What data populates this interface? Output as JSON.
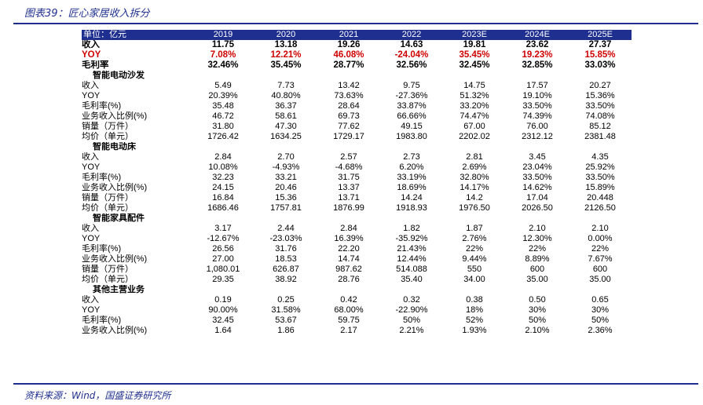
{
  "title": "图表39：匠心家居收入拆分",
  "source": "资料来源：Wind，国盛证券研究所",
  "header": [
    "单位：亿元",
    "2019",
    "2020",
    "2021",
    "2022",
    "2023E",
    "2024E",
    "2025E"
  ],
  "top_rows": [
    {
      "label": "收入",
      "values": [
        "11.75",
        "13.18",
        "19.26",
        "14.63",
        "19.81",
        "23.62",
        "27.37"
      ],
      "style": "top"
    },
    {
      "label": "YOY",
      "values": [
        "7.08%",
        "12.21%",
        "46.08%",
        "-24.04%",
        "35.45%",
        "19.23%",
        "15.85%"
      ],
      "style": "top red"
    },
    {
      "label": "毛利率",
      "values": [
        "32.46%",
        "35.45%",
        "28.77%",
        "32.56%",
        "32.45%",
        "32.85%",
        "33.03%"
      ],
      "style": "top"
    }
  ],
  "sections": [
    {
      "name": "智能电动沙发",
      "rows": [
        {
          "label": "收入",
          "indent": "l2",
          "values": [
            "5.49",
            "7.73",
            "13.42",
            "9.75",
            "14.75",
            "17.57",
            "20.27"
          ]
        },
        {
          "label": "YOY",
          "indent": "l2",
          "values": [
            "20.39%",
            "40.80%",
            "73.63%",
            "-27.36%",
            "51.32%",
            "19.10%",
            "15.36%"
          ]
        },
        {
          "label": "毛利率(%)",
          "indent": "l2",
          "values": [
            "35.48",
            "36.37",
            "28.64",
            "33.87%",
            "33.20%",
            "33.50%",
            "33.50%"
          ]
        },
        {
          "label": "业务收入比例(%)",
          "indent": "l2",
          "values": [
            "46.72",
            "58.61",
            "69.73",
            "66.66%",
            "74.47%",
            "74.39%",
            "74.08%"
          ]
        },
        {
          "label": "销量（万件）",
          "indent": "l3",
          "values": [
            "31.80",
            "47.30",
            "77.62",
            "49.15",
            "67.00",
            "76.00",
            "85.12"
          ]
        },
        {
          "label": "均价（单元）",
          "indent": "l3",
          "values": [
            "1726.42",
            "1634.25",
            "1729.17",
            "1983.80",
            "2202.02",
            "2312.12",
            "2381.48"
          ]
        }
      ]
    },
    {
      "name": "智能电动床",
      "rows": [
        {
          "label": "收入",
          "indent": "l2",
          "values": [
            "2.84",
            "2.70",
            "2.57",
            "2.73",
            "2.81",
            "3.45",
            "4.35"
          ]
        },
        {
          "label": "YOY",
          "indent": "l2",
          "values": [
            "10.08%",
            "-4.93%",
            "-4.68%",
            "6.20%",
            "2.69%",
            "23.04%",
            "25.92%"
          ]
        },
        {
          "label": "毛利率(%)",
          "indent": "l2",
          "values": [
            "32.23",
            "33.21",
            "31.75",
            "33.19%",
            "32.80%",
            "33.50%",
            "33.50%"
          ]
        },
        {
          "label": "业务收入比例(%)",
          "indent": "l2",
          "values": [
            "24.15",
            "20.46",
            "13.37",
            "18.69%",
            "14.17%",
            "14.62%",
            "15.89%"
          ]
        },
        {
          "label": "销量（万件）",
          "indent": "l3",
          "values": [
            "16.84",
            "15.36",
            "13.71",
            "14.24",
            "14.2",
            "17.04",
            "20.448"
          ]
        },
        {
          "label": "均价（单元）",
          "indent": "l3",
          "values": [
            "1686.46",
            "1757.81",
            "1876.99",
            "1918.93",
            "1976.50",
            "2026.50",
            "2126.50"
          ]
        }
      ]
    },
    {
      "name": "智能家具配件",
      "rows": [
        {
          "label": "收入",
          "indent": "l2",
          "values": [
            "3.17",
            "2.44",
            "2.84",
            "1.82",
            "1.87",
            "2.10",
            "2.10"
          ]
        },
        {
          "label": "YOY",
          "indent": "l2",
          "values": [
            "-12.67%",
            "-23.03%",
            "16.39%",
            "-35.92%",
            "2.76%",
            "12.30%",
            "0.00%"
          ]
        },
        {
          "label": "毛利率(%)",
          "indent": "l2",
          "values": [
            "26.56",
            "31.76",
            "22.20",
            "21.43%",
            "22%",
            "22%",
            "22%"
          ]
        },
        {
          "label": "业务收入比例(%)",
          "indent": "l2",
          "values": [
            "27.00",
            "18.53",
            "14.74",
            "12.44%",
            "9.44%",
            "8.89%",
            "7.67%"
          ]
        },
        {
          "label": "销量（万件）",
          "indent": "l3",
          "values": [
            "1,080.01",
            "626.87",
            "987.62",
            "514.088",
            "550",
            "600",
            "600"
          ]
        },
        {
          "label": "均价（单元）",
          "indent": "l3",
          "values": [
            "29.35",
            "38.92",
            "28.76",
            "35.40",
            "34.00",
            "35.00",
            "35.00"
          ]
        }
      ]
    },
    {
      "name": "其他主营业务",
      "rows": [
        {
          "label": "收入",
          "indent": "l2",
          "values": [
            "0.19",
            "0.25",
            "0.42",
            "0.32",
            "0.38",
            "0.50",
            "0.65"
          ]
        },
        {
          "label": "YOY",
          "indent": "l2",
          "values": [
            "90.00%",
            "31.58%",
            "68.00%",
            "-22.90%",
            "18%",
            "30%",
            "30%"
          ]
        },
        {
          "label": "毛利率(%)",
          "indent": "l2",
          "values": [
            "32.45",
            "53.67",
            "59.75",
            "50%",
            "52%",
            "50%",
            "50%"
          ]
        },
        {
          "label": "业务收入比例(%)",
          "indent": "l2",
          "values": [
            "1.64",
            "1.86",
            "2.17",
            "2.21%",
            "1.93%",
            "2.10%",
            "2.36%"
          ]
        }
      ]
    }
  ]
}
